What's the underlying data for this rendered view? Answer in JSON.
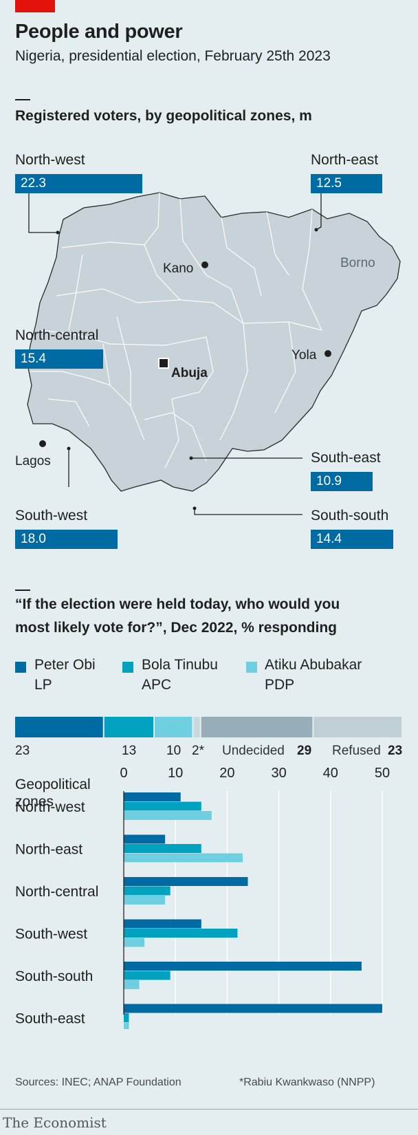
{
  "header": {
    "title": "People and power",
    "subtitle": "Nigeria, presidential election, February 25th 2023"
  },
  "map_section": {
    "title": "Registered voters, by geopolitical zones, m",
    "zones": [
      {
        "name": "North-west",
        "value": 22.3,
        "label": "22.3"
      },
      {
        "name": "North-east",
        "value": 12.5,
        "label": "12.5"
      },
      {
        "name": "North-central",
        "value": 15.4,
        "label": "15.4"
      },
      {
        "name": "South-east",
        "value": 10.9,
        "label": "10.9"
      },
      {
        "name": "South-west",
        "value": 18.0,
        "label": "18.0"
      },
      {
        "name": "South-south",
        "value": 14.4,
        "label": "14.4"
      }
    ],
    "cities": {
      "kano": "Kano",
      "abuja": "Abuja",
      "yola": "Yola",
      "lagos": "Lagos",
      "borno": "Borno"
    }
  },
  "poll_section": {
    "title_line1": "“If the election were held today, who would you",
    "title_line2": "most likely vote for?”, Dec 2022, % responding",
    "legend": [
      {
        "name": "Peter Obi",
        "party": "LP",
        "color": "#006ba2"
      },
      {
        "name": "Bola Tinubu",
        "party": "APC",
        "color": "#00a2bf"
      },
      {
        "name": "Atiku Abubakar",
        "party": "PDP",
        "color": "#6dcfe0"
      }
    ]
  },
  "chart_data": [
    {
      "type": "bar",
      "title": "Registered voters, by geopolitical zones, m",
      "categories": [
        "North-west",
        "North-east",
        "North-central",
        "South-east",
        "South-west",
        "South-south"
      ],
      "values": [
        22.3,
        12.5,
        15.4,
        10.9,
        18.0,
        14.4
      ]
    },
    {
      "type": "bar",
      "stacked": true,
      "segments": [
        {
          "name": "Peter Obi",
          "value": 23,
          "label": "23",
          "color": "#006ba2"
        },
        {
          "name": "Bola Tinubu",
          "value": 13,
          "label": "13",
          "color": "#00a2bf"
        },
        {
          "name": "Atiku Abubakar",
          "value": 10,
          "label": "10",
          "color": "#6dcfe0"
        },
        {
          "name": "Rabiu Kwankwaso (NNPP)",
          "value": 2,
          "label": "2*",
          "color": "#c9d8dd"
        },
        {
          "name": "Undecided",
          "value": 29,
          "label": "Undecided",
          "color": "#97adb8"
        },
        {
          "name": "Refused",
          "value": 23,
          "label": "Refused",
          "color": "#bfcfd5"
        }
      ]
    },
    {
      "type": "bar",
      "orientation": "horizontal",
      "ylabel_line1": "Geopolitical",
      "ylabel_line2": "zones",
      "xlim": [
        0,
        50
      ],
      "xticks": [
        0,
        10,
        20,
        30,
        40,
        50
      ],
      "grid": true,
      "categories": [
        "North-west",
        "North-east",
        "North-central",
        "South-west",
        "South-south",
        "South-east"
      ],
      "series": [
        {
          "name": "Peter Obi",
          "color": "#006ba2",
          "values": [
            11,
            8,
            24,
            15,
            46,
            50
          ]
        },
        {
          "name": "Bola Tinubu",
          "color": "#00a2bf",
          "values": [
            15,
            15,
            9,
            22,
            9,
            1
          ]
        },
        {
          "name": "Atiku Abubakar",
          "color": "#6dcfe0",
          "values": [
            17,
            23,
            8,
            4,
            3,
            1
          ]
        }
      ]
    }
  ],
  "footer": {
    "sources": "Sources: INEC; ANAP Foundation",
    "footnote": "*Rabiu Kwankwaso (NNPP)",
    "brand": "The Economist"
  }
}
